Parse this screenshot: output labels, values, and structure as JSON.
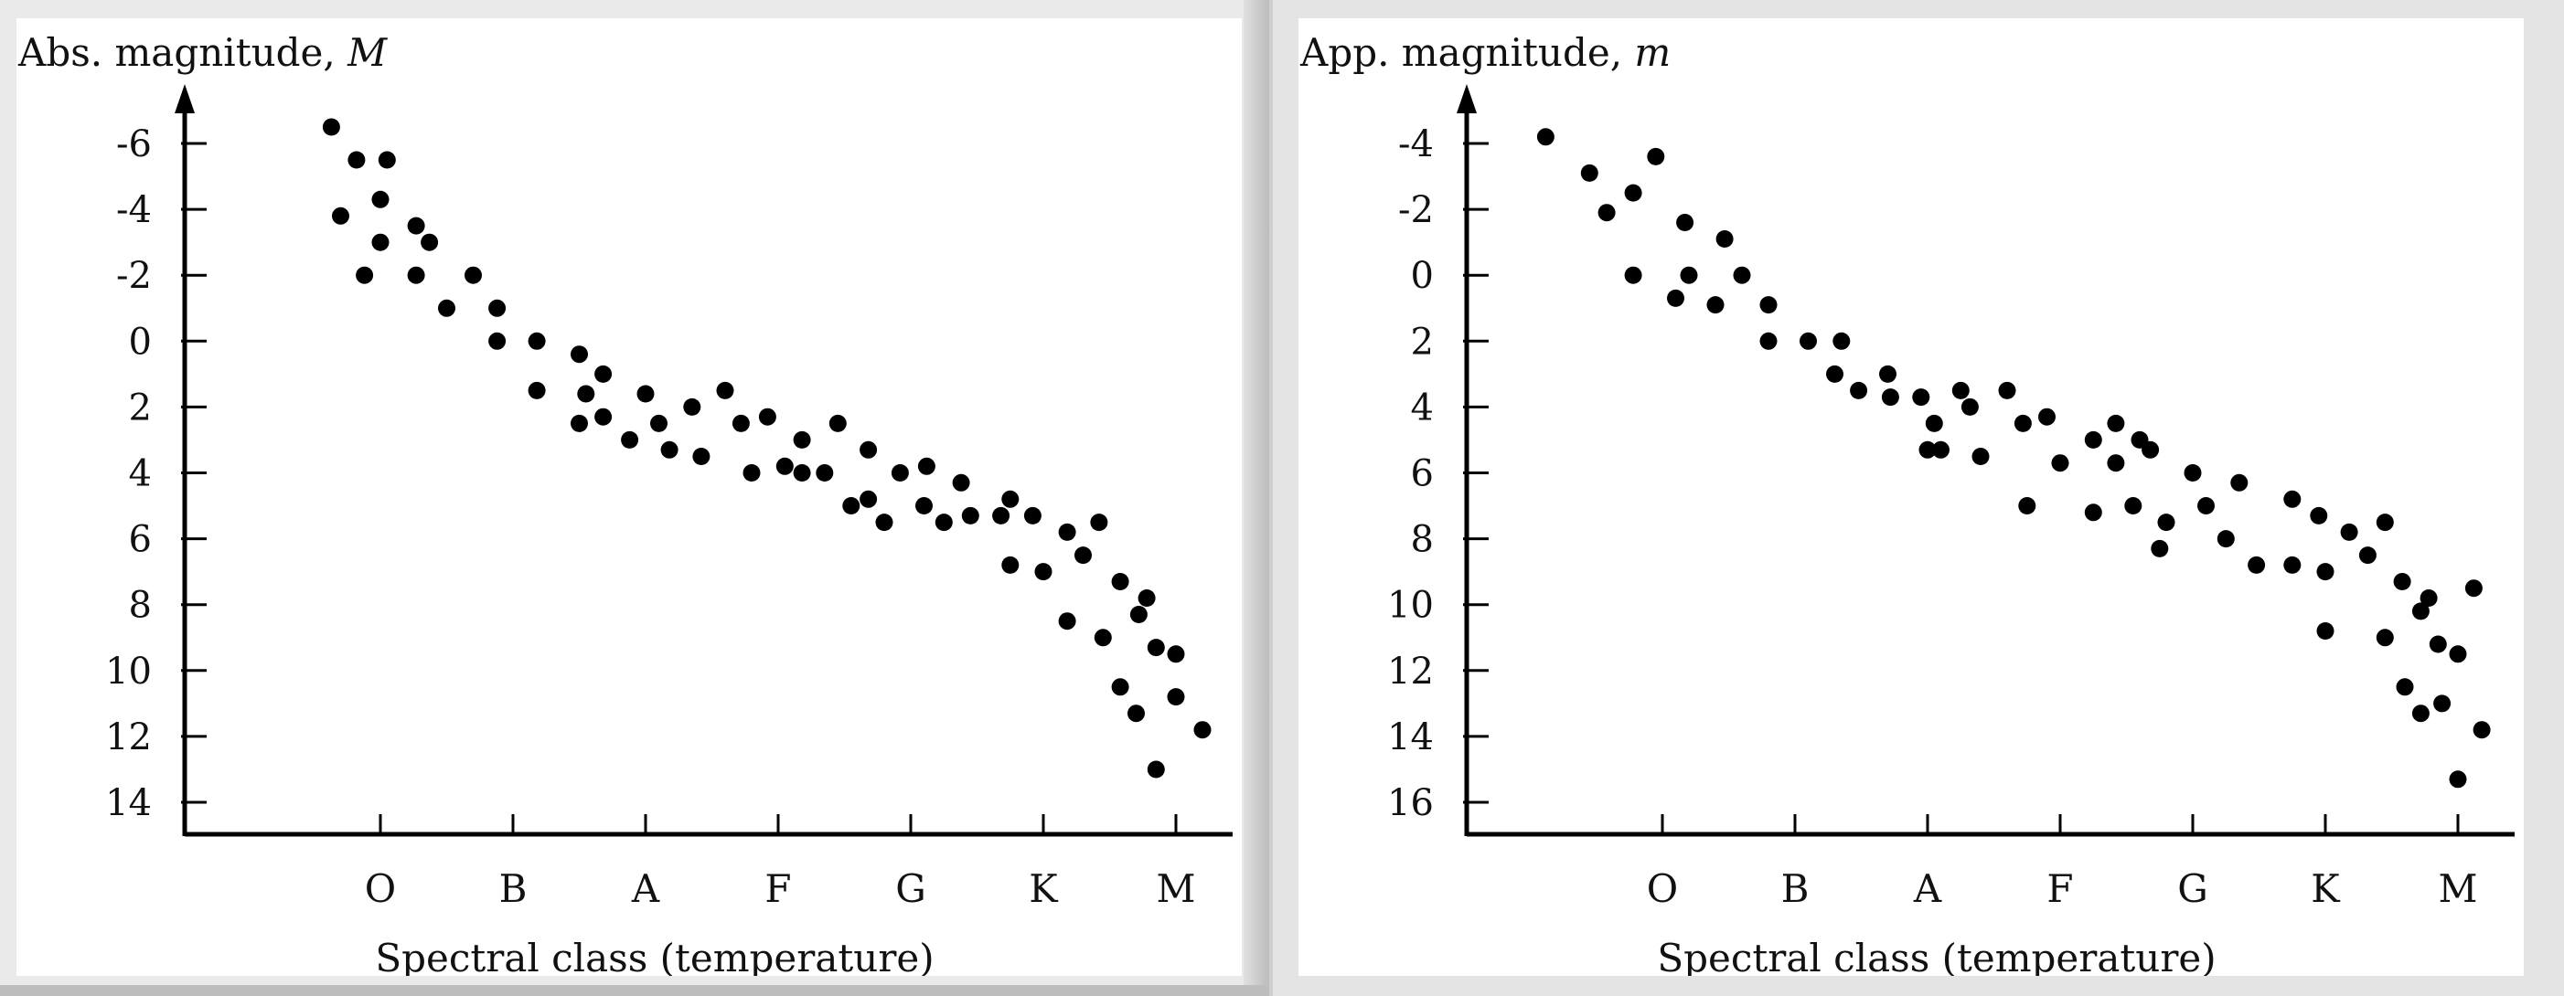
{
  "chart_data": [
    {
      "type": "scatter",
      "title": "",
      "ylabel_text": "Abs. magnitude, ",
      "ylabel_var": "M",
      "xlabel": "Spectral class (temperature)",
      "categories": [
        "O",
        "B",
        "A",
        "F",
        "G",
        "K",
        "M"
      ],
      "yticks": [
        -6,
        -4,
        -2,
        0,
        2,
        4,
        6,
        8,
        10,
        12,
        14
      ],
      "ylim": [
        15.0,
        -7.3
      ],
      "xlim": [
        -1.5,
        6.65
      ],
      "y_inverted": true,
      "grid": false,
      "points": [
        [
          -0.37,
          -6.5
        ],
        [
          -0.3,
          -3.8
        ],
        [
          -0.18,
          -5.5
        ],
        [
          -0.12,
          -2.0
        ],
        [
          0.0,
          -4.3
        ],
        [
          0.0,
          -3.0
        ],
        [
          0.05,
          -5.5
        ],
        [
          0.27,
          -3.5
        ],
        [
          0.27,
          -2.0
        ],
        [
          0.37,
          -3.0
        ],
        [
          0.5,
          -1.0
        ],
        [
          0.7,
          -2.0
        ],
        [
          0.88,
          -1.0
        ],
        [
          0.88,
          0.0
        ],
        [
          1.18,
          0.0
        ],
        [
          1.18,
          1.5
        ],
        [
          1.5,
          0.4
        ],
        [
          1.5,
          2.5
        ],
        [
          1.55,
          1.6
        ],
        [
          1.68,
          1.0
        ],
        [
          1.68,
          2.3
        ],
        [
          1.88,
          3.0
        ],
        [
          2.0,
          1.6
        ],
        [
          2.1,
          2.5
        ],
        [
          2.18,
          3.3
        ],
        [
          2.35,
          2.0
        ],
        [
          2.42,
          3.5
        ],
        [
          2.6,
          1.5
        ],
        [
          2.72,
          2.5
        ],
        [
          2.8,
          4.0
        ],
        [
          2.92,
          2.3
        ],
        [
          3.05,
          3.8
        ],
        [
          3.18,
          3.0
        ],
        [
          3.18,
          4.0
        ],
        [
          3.35,
          4.0
        ],
        [
          3.45,
          2.5
        ],
        [
          3.55,
          5.0
        ],
        [
          3.68,
          3.3
        ],
        [
          3.68,
          4.8
        ],
        [
          3.8,
          5.5
        ],
        [
          3.92,
          4.0
        ],
        [
          4.1,
          5.0
        ],
        [
          4.12,
          3.8
        ],
        [
          4.25,
          5.5
        ],
        [
          4.38,
          4.3
        ],
        [
          4.45,
          5.3
        ],
        [
          4.68,
          5.3
        ],
        [
          4.75,
          4.8
        ],
        [
          4.75,
          6.8
        ],
        [
          4.92,
          5.3
        ],
        [
          5.0,
          7.0
        ],
        [
          5.18,
          5.8
        ],
        [
          5.18,
          8.5
        ],
        [
          5.3,
          6.5
        ],
        [
          5.42,
          5.5
        ],
        [
          5.45,
          9.0
        ],
        [
          5.58,
          7.3
        ],
        [
          5.58,
          10.5
        ],
        [
          5.7,
          11.3
        ],
        [
          5.72,
          8.3
        ],
        [
          5.78,
          7.8
        ],
        [
          5.85,
          9.3
        ],
        [
          5.85,
          13.0
        ],
        [
          6.0,
          9.5
        ],
        [
          6.0,
          10.8
        ],
        [
          6.2,
          11.8
        ]
      ]
    },
    {
      "type": "scatter",
      "title": "",
      "ylabel_text": "App. magnitude, ",
      "ylabel_var": "m",
      "xlabel": "Spectral class (temperature)",
      "categories": [
        "O",
        "B",
        "A",
        "F",
        "G",
        "K",
        "M"
      ],
      "yticks": [
        -4,
        -2,
        0,
        2,
        4,
        6,
        8,
        10,
        12,
        14,
        16
      ],
      "ylim": [
        17.0,
        -5.3
      ],
      "xlim": [
        -1.5,
        6.65
      ],
      "y_inverted": true,
      "grid": false,
      "points": [
        [
          -0.88,
          -4.2
        ],
        [
          -0.55,
          -3.1
        ],
        [
          -0.42,
          -1.9
        ],
        [
          -0.22,
          -2.5
        ],
        [
          -0.22,
          0.0
        ],
        [
          -0.05,
          -3.6
        ],
        [
          0.1,
          0.7
        ],
        [
          0.17,
          -1.6
        ],
        [
          0.2,
          0.0
        ],
        [
          0.4,
          0.9
        ],
        [
          0.47,
          -1.1
        ],
        [
          0.6,
          0.0
        ],
        [
          0.8,
          0.9
        ],
        [
          0.8,
          2.0
        ],
        [
          1.1,
          2.0
        ],
        [
          1.3,
          3.0
        ],
        [
          1.35,
          2.0
        ],
        [
          1.48,
          3.5
        ],
        [
          1.7,
          3.0
        ],
        [
          1.72,
          3.7
        ],
        [
          1.95,
          3.7
        ],
        [
          2.0,
          5.3
        ],
        [
          2.05,
          4.5
        ],
        [
          2.1,
          5.3
        ],
        [
          2.25,
          3.5
        ],
        [
          2.32,
          4.0
        ],
        [
          2.4,
          5.5
        ],
        [
          2.6,
          3.5
        ],
        [
          2.72,
          4.5
        ],
        [
          2.75,
          7.0
        ],
        [
          2.9,
          4.3
        ],
        [
          3.0,
          5.7
        ],
        [
          3.25,
          5.0
        ],
        [
          3.25,
          7.2
        ],
        [
          3.42,
          4.5
        ],
        [
          3.42,
          5.7
        ],
        [
          3.55,
          7.0
        ],
        [
          3.6,
          5.0
        ],
        [
          3.68,
          5.3
        ],
        [
          3.75,
          8.3
        ],
        [
          3.8,
          7.5
        ],
        [
          4.0,
          6.0
        ],
        [
          4.1,
          7.0
        ],
        [
          4.25,
          8.0
        ],
        [
          4.35,
          6.3
        ],
        [
          4.48,
          8.8
        ],
        [
          4.75,
          6.8
        ],
        [
          4.75,
          8.8
        ],
        [
          4.95,
          7.3
        ],
        [
          5.0,
          9.0
        ],
        [
          5.0,
          10.8
        ],
        [
          5.18,
          7.8
        ],
        [
          5.32,
          8.5
        ],
        [
          5.45,
          7.5
        ],
        [
          5.45,
          11.0
        ],
        [
          5.58,
          9.3
        ],
        [
          5.6,
          12.5
        ],
        [
          5.72,
          10.2
        ],
        [
          5.72,
          13.3
        ],
        [
          5.78,
          9.8
        ],
        [
          5.85,
          11.2
        ],
        [
          5.88,
          13.0
        ],
        [
          6.0,
          11.5
        ],
        [
          6.0,
          15.3
        ],
        [
          6.12,
          9.5
        ],
        [
          6.18,
          13.8
        ]
      ]
    }
  ]
}
